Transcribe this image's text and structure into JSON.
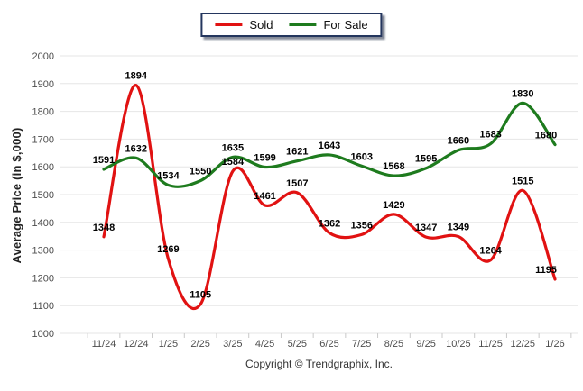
{
  "legend": {
    "items": [
      {
        "label": "Sold",
        "color": "#e11212"
      },
      {
        "label": "For Sale",
        "color": "#1e7b1e"
      }
    ]
  },
  "footer_text": "Copyright © Trendgraphix, Inc.",
  "chart_data": {
    "type": "line",
    "title": "",
    "ylabel": "Average Price (in $,000)",
    "xlabel": "",
    "ylim": [
      1000,
      2000
    ],
    "ytick_step": 100,
    "grid": true,
    "legend_position": "top-center",
    "smooth": true,
    "categories": [
      "11/24",
      "12/24",
      "1/25",
      "2/25",
      "3/25",
      "4/25",
      "5/25",
      "6/25",
      "7/25",
      "8/25",
      "9/25",
      "10/25",
      "11/25",
      "12/25",
      "1/26"
    ],
    "series": [
      {
        "name": "Sold",
        "color": "#e11212",
        "values": [
          1348,
          1894,
          1269,
          1105,
          1584,
          1461,
          1507,
          1362,
          1356,
          1429,
          1347,
          1349,
          1264,
          1515,
          1195
        ]
      },
      {
        "name": "For Sale",
        "color": "#1e7b1e",
        "values": [
          1591,
          1632,
          1534,
          1550,
          1635,
          1599,
          1621,
          1643,
          1603,
          1568,
          1595,
          1660,
          1683,
          1830,
          1680
        ]
      }
    ]
  }
}
